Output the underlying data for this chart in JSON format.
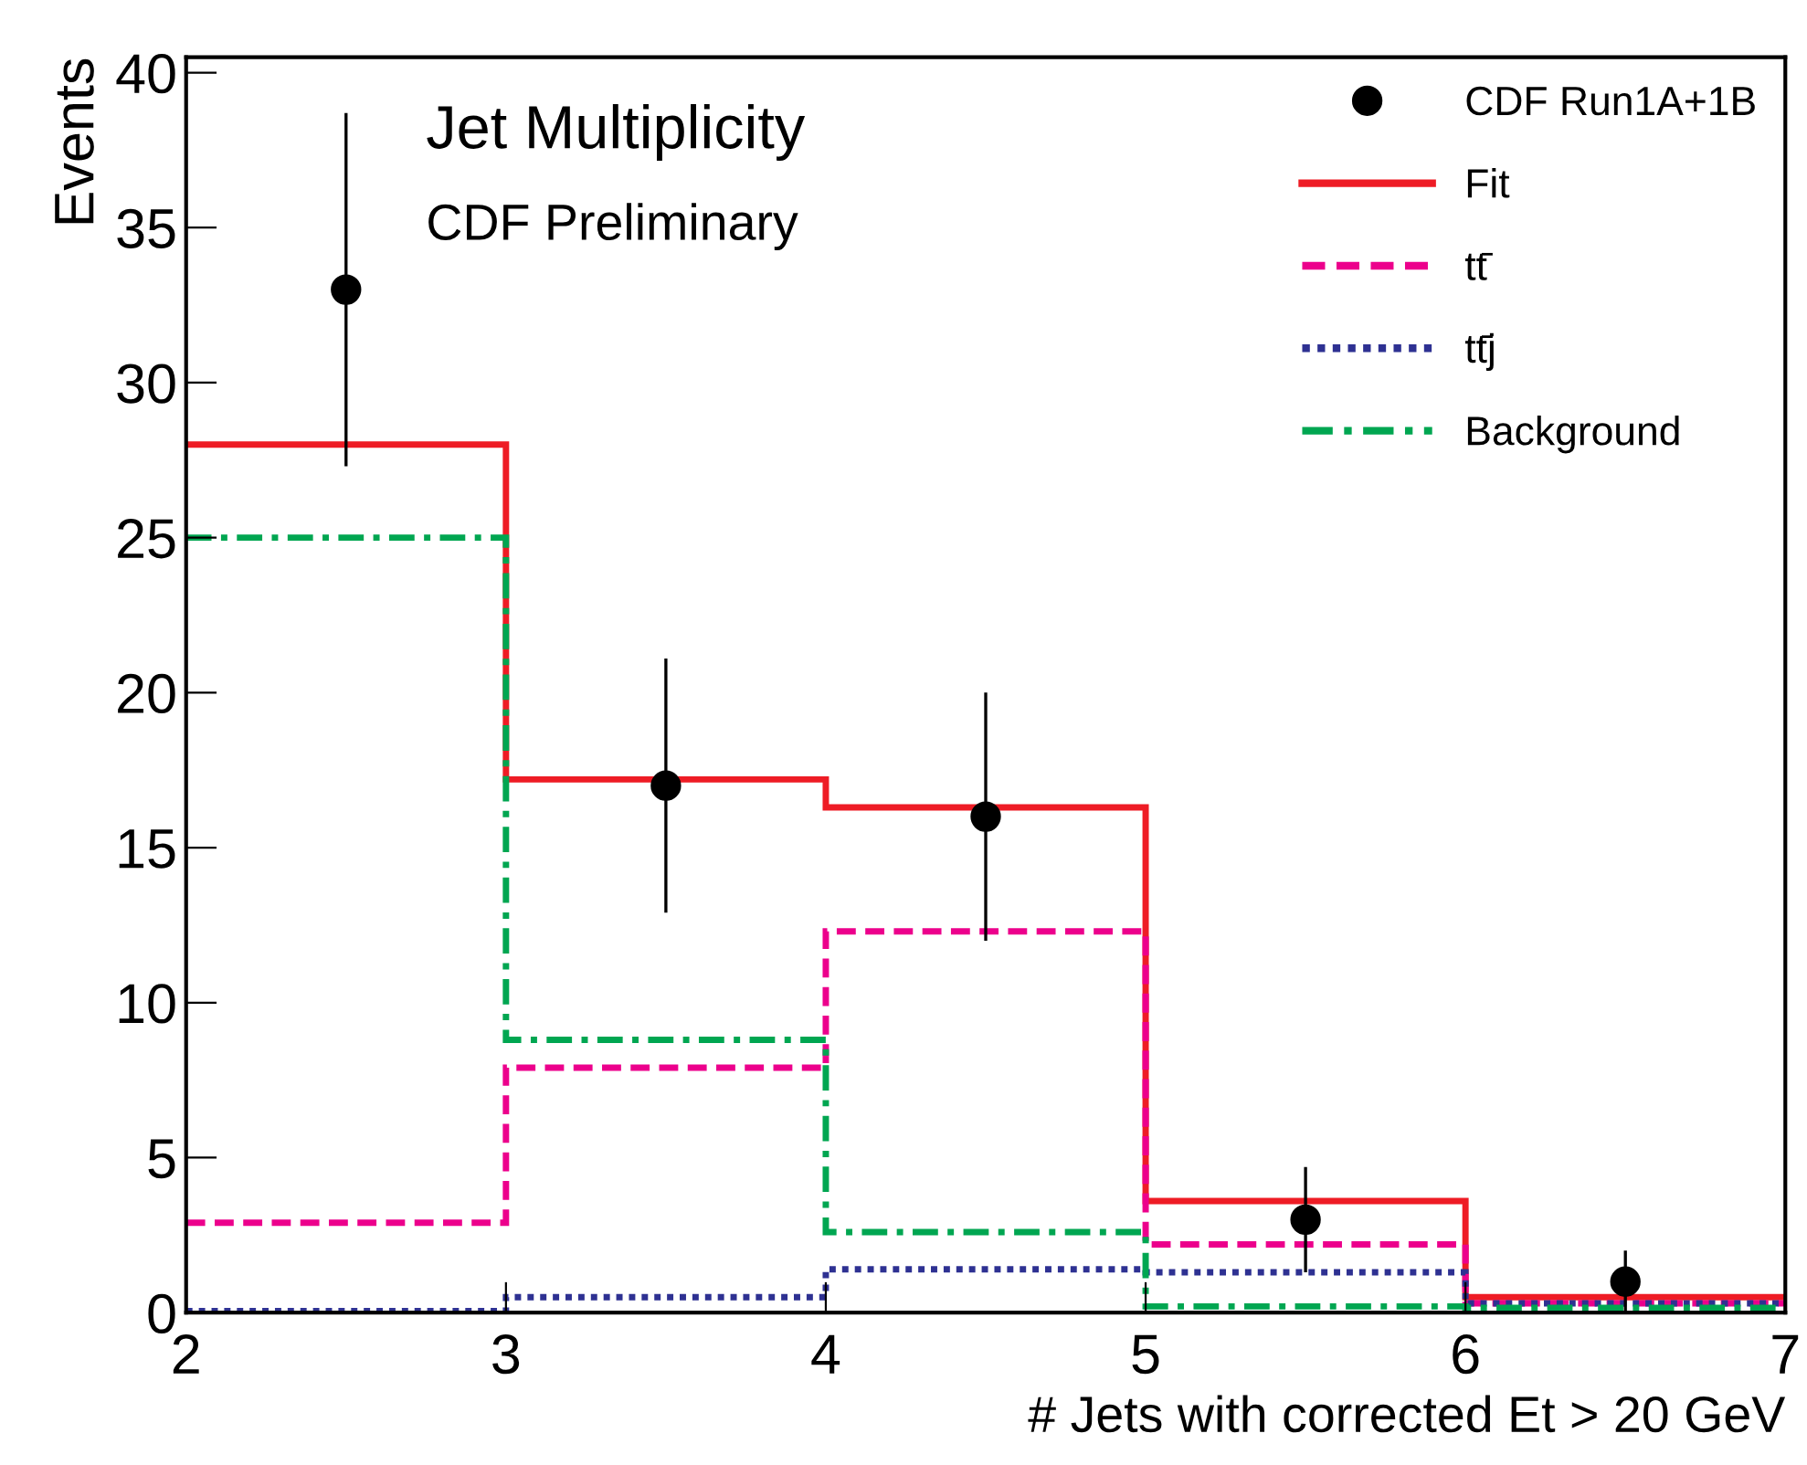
{
  "chart_data": {
    "type": "histogram",
    "xlabel": "# Jets with corrected Et > 20 GeV",
    "ylabel": "Events",
    "annotations": [
      "Jet Multiplicity",
      "CDF Preliminary"
    ],
    "bins": [
      2,
      3,
      4,
      5,
      6,
      7
    ],
    "series": [
      {
        "name": "CDF Run1A+1B",
        "type": "scatter",
        "color": "#000000",
        "marker": "circle",
        "x": [
          2.5,
          3.5,
          4.5,
          5.5,
          6.5
        ],
        "values": [
          33,
          17,
          16,
          3,
          1
        ],
        "errors": [
          5.7,
          4.1,
          4.0,
          1.7,
          1.0
        ]
      },
      {
        "name": "Fit",
        "color": "#ee1c25",
        "line_style": "solid",
        "values": [
          28,
          17.2,
          16.3,
          3.6,
          0.5
        ]
      },
      {
        "name": "tt̄",
        "color": "#ec008c",
        "line_style": "dashed",
        "values": [
          2.9,
          7.9,
          12.3,
          2.2,
          0.3
        ]
      },
      {
        "name": "tt̄j",
        "color": "#2e3192",
        "line_style": "dotted",
        "values": [
          0.05,
          0.5,
          1.4,
          1.3,
          0.3
        ]
      },
      {
        "name": "Background",
        "color": "#00a651",
        "line_style": "dashdot",
        "values": [
          25,
          8.8,
          2.6,
          0.2,
          0.15
        ]
      }
    ],
    "xlim": [
      2,
      7
    ],
    "ylim": [
      0,
      40.5
    ],
    "xticks": [
      2,
      3,
      4,
      5,
      6,
      7
    ],
    "yticks": [
      0,
      5,
      10,
      15,
      20,
      25,
      30,
      35,
      40
    ],
    "grid": false,
    "legend": "top right"
  }
}
